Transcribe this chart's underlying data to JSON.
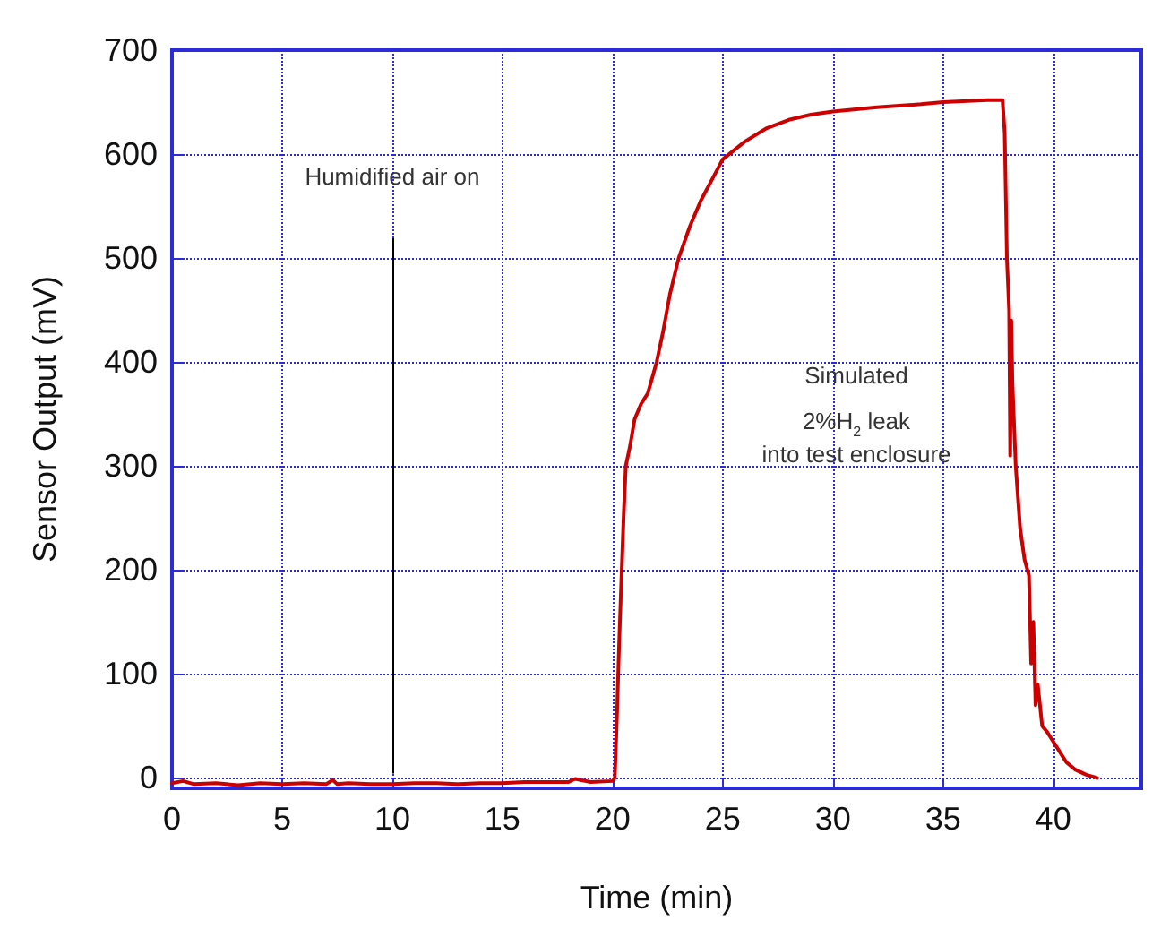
{
  "chart_data": {
    "type": "line",
    "xlabel": "Time (min)",
    "ylabel": "Sensor Output (mV)",
    "xlim": [
      0,
      44
    ],
    "ylim": [
      -10,
      700
    ],
    "xticks": [
      0,
      5,
      10,
      15,
      20,
      25,
      30,
      35,
      40
    ],
    "yticks": [
      0,
      100,
      200,
      300,
      400,
      500,
      600,
      700
    ],
    "grid": true,
    "marker": "none",
    "line_style": "solid",
    "series": [
      {
        "color": "#cc0000",
        "x": [
          0,
          0.5,
          1,
          2,
          3,
          4,
          5,
          6,
          7,
          7.3,
          7.5,
          8,
          9,
          10,
          11,
          12,
          13,
          14,
          15,
          16,
          17,
          18,
          18.3,
          19,
          20,
          20.1,
          20.2,
          20.3,
          20.4,
          20.5,
          20.6,
          20.8,
          21,
          21.3,
          21.6,
          22,
          22.3,
          22.6,
          23,
          23.5,
          24,
          24.5,
          25,
          26,
          27,
          28,
          29,
          30,
          32,
          34,
          35,
          37,
          37.7,
          37.8,
          37.9,
          38,
          38.05,
          38.1,
          38.15,
          38.3,
          38.5,
          38.7,
          38.9,
          39,
          39.1,
          39.2,
          39.3,
          39.5,
          39.7,
          40,
          40.3,
          40.6,
          41,
          41.5,
          42
        ],
        "values": [
          -5,
          -3,
          -6,
          -5,
          -7,
          -5,
          -6,
          -5,
          -6,
          -2,
          -6,
          -5,
          -6,
          -6,
          -5,
          -5,
          -6,
          -5,
          -5,
          -4,
          -4,
          -4,
          -1,
          -4,
          -3,
          0,
          60,
          130,
          190,
          250,
          300,
          320,
          345,
          360,
          370,
          400,
          430,
          465,
          500,
          530,
          555,
          575,
          595,
          612,
          625,
          633,
          638,
          641,
          645,
          648,
          650,
          652,
          652,
          620,
          500,
          450,
          310,
          440,
          380,
          300,
          240,
          210,
          195,
          110,
          150,
          70,
          90,
          50,
          45,
          35,
          25,
          15,
          8,
          3,
          0
        ]
      }
    ],
    "ref_lines": [
      {
        "axis": "x",
        "value": 10,
        "label": "Humidified air on",
        "color": "#000000"
      }
    ],
    "annotations": [
      "Simulated\n2%H$_{2}$ leak\ninto test enclosure"
    ]
  }
}
